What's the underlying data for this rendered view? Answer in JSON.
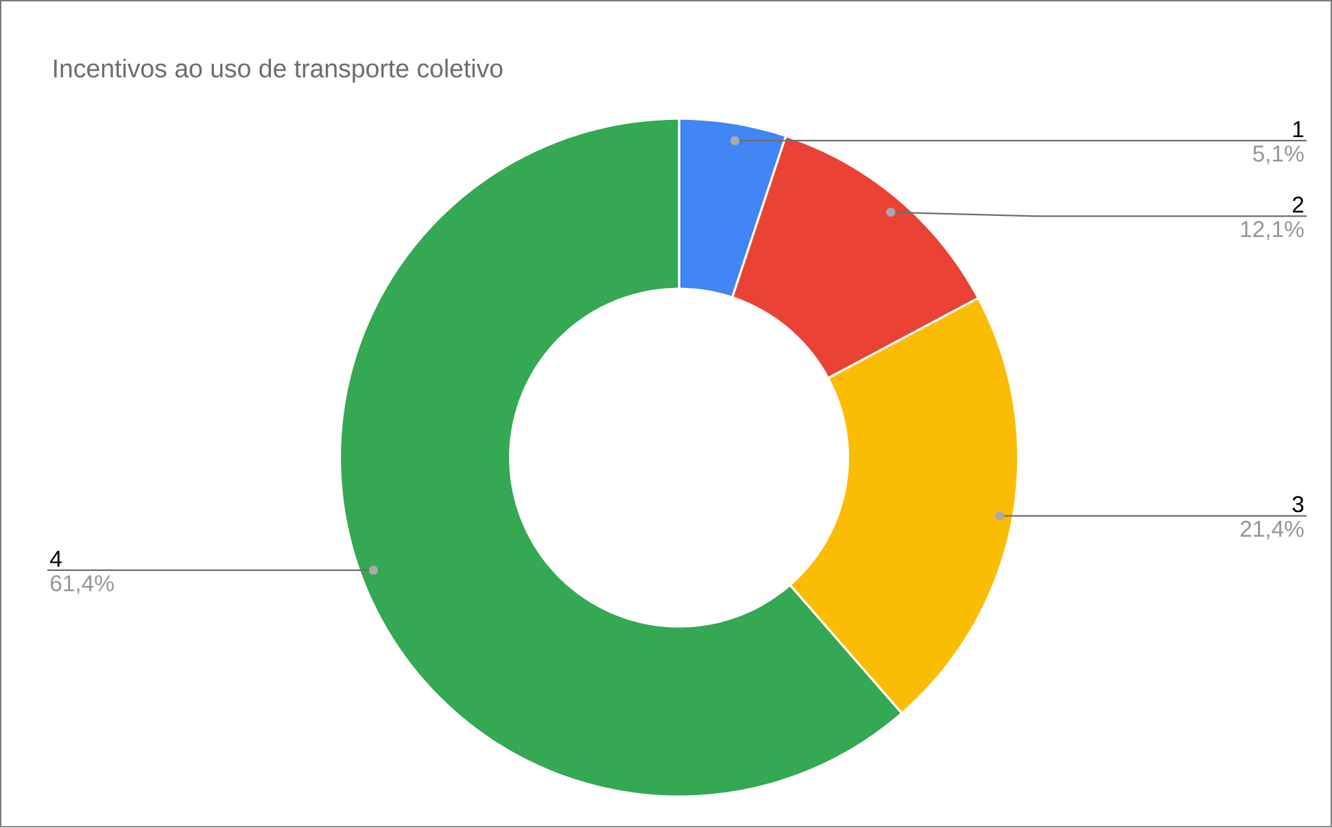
{
  "chart_data": {
    "type": "donut",
    "title": "Incentivos ao uso de transporte coletivo",
    "categories": [
      "1",
      "2",
      "3",
      "4"
    ],
    "values": [
      5.1,
      12.1,
      21.4,
      61.4
    ],
    "value_labels": [
      "5,1%",
      "12,1%",
      "21,4%",
      "61,4%"
    ],
    "colors": [
      "#4285f4",
      "#ea4335",
      "#fbbc04",
      "#34a853"
    ]
  }
}
